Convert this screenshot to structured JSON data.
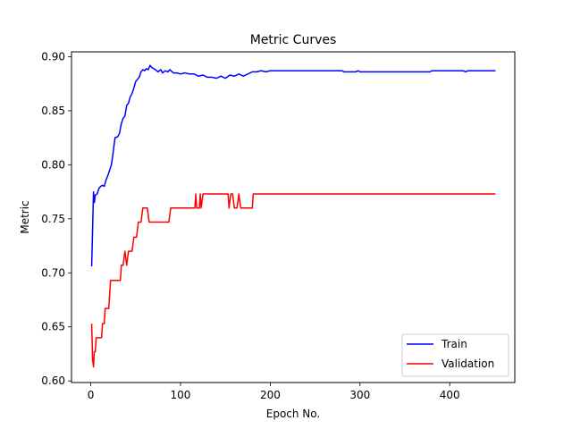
{
  "chart_data": {
    "type": "line",
    "title": "Metric Curves",
    "xlabel": "Epoch No.",
    "ylabel": "Metric",
    "xlim": [
      -21.5,
      472.5
    ],
    "ylim": [
      0.5985,
      0.9045
    ],
    "xticks": [
      0,
      100,
      200,
      300,
      400
    ],
    "yticks": [
      0.6,
      0.65,
      0.7,
      0.75,
      0.8,
      0.85,
      0.9
    ],
    "grid": false,
    "legend_position": "lower-right",
    "series": [
      {
        "name": "Train",
        "color": "#0000ff",
        "points": [
          [
            1,
            0.706
          ],
          [
            2,
            0.74
          ],
          [
            3,
            0.775
          ],
          [
            4,
            0.765
          ],
          [
            5,
            0.772
          ],
          [
            7,
            0.773
          ],
          [
            9,
            0.778
          ],
          [
            11,
            0.78
          ],
          [
            13,
            0.781
          ],
          [
            15,
            0.78
          ],
          [
            17,
            0.786
          ],
          [
            19,
            0.79
          ],
          [
            21,
            0.795
          ],
          [
            23,
            0.8
          ],
          [
            25,
            0.812
          ],
          [
            27,
            0.825
          ],
          [
            30,
            0.826
          ],
          [
            32,
            0.829
          ],
          [
            34,
            0.838
          ],
          [
            36,
            0.843
          ],
          [
            38,
            0.845
          ],
          [
            40,
            0.855
          ],
          [
            42,
            0.857
          ],
          [
            44,
            0.863
          ],
          [
            46,
            0.866
          ],
          [
            48,
            0.871
          ],
          [
            50,
            0.877
          ],
          [
            52,
            0.879
          ],
          [
            54,
            0.881
          ],
          [
            56,
            0.886
          ],
          [
            58,
            0.888
          ],
          [
            60,
            0.887
          ],
          [
            62,
            0.889
          ],
          [
            64,
            0.888
          ],
          [
            66,
            0.892
          ],
          [
            68,
            0.89
          ],
          [
            70,
            0.889
          ],
          [
            72,
            0.888
          ],
          [
            75,
            0.886
          ],
          [
            78,
            0.888
          ],
          [
            80,
            0.885
          ],
          [
            83,
            0.887
          ],
          [
            86,
            0.886
          ],
          [
            88,
            0.888
          ],
          [
            92,
            0.885
          ],
          [
            96,
            0.885
          ],
          [
            100,
            0.884
          ],
          [
            105,
            0.885
          ],
          [
            110,
            0.884
          ],
          [
            115,
            0.884
          ],
          [
            120,
            0.882
          ],
          [
            125,
            0.883
          ],
          [
            130,
            0.881
          ],
          [
            135,
            0.881
          ],
          [
            140,
            0.88
          ],
          [
            145,
            0.882
          ],
          [
            150,
            0.88
          ],
          [
            155,
            0.883
          ],
          [
            160,
            0.882
          ],
          [
            165,
            0.884
          ],
          [
            170,
            0.882
          ],
          [
            175,
            0.884
          ],
          [
            180,
            0.886
          ],
          [
            185,
            0.886
          ],
          [
            190,
            0.887
          ],
          [
            195,
            0.886
          ],
          [
            200,
            0.887
          ],
          [
            230,
            0.887
          ],
          [
            280,
            0.887
          ],
          [
            282,
            0.886
          ],
          [
            295,
            0.886
          ],
          [
            298,
            0.887
          ],
          [
            300,
            0.886
          ],
          [
            340,
            0.886
          ],
          [
            378,
            0.886
          ],
          [
            380,
            0.887
          ],
          [
            415,
            0.887
          ],
          [
            418,
            0.886
          ],
          [
            420,
            0.887
          ],
          [
            451,
            0.887
          ]
        ]
      },
      {
        "name": "Validation",
        "color": "#ff0000",
        "points": [
          [
            1,
            0.653
          ],
          [
            2,
            0.62
          ],
          [
            3,
            0.613
          ],
          [
            4,
            0.627
          ],
          [
            5,
            0.627
          ],
          [
            6,
            0.64
          ],
          [
            11,
            0.64
          ],
          [
            12,
            0.64
          ],
          [
            13,
            0.653
          ],
          [
            15,
            0.653
          ],
          [
            16,
            0.667
          ],
          [
            20,
            0.667
          ],
          [
            22,
            0.693
          ],
          [
            33,
            0.693
          ],
          [
            34,
            0.707
          ],
          [
            36,
            0.707
          ],
          [
            38,
            0.72
          ],
          [
            40,
            0.707
          ],
          [
            42,
            0.72
          ],
          [
            46,
            0.72
          ],
          [
            48,
            0.733
          ],
          [
            51,
            0.733
          ],
          [
            53,
            0.747
          ],
          [
            56,
            0.747
          ],
          [
            58,
            0.76
          ],
          [
            63,
            0.76
          ],
          [
            65,
            0.747
          ],
          [
            87,
            0.747
          ],
          [
            89,
            0.76
          ],
          [
            116,
            0.76
          ],
          [
            117,
            0.773
          ],
          [
            118,
            0.76
          ],
          [
            121,
            0.76
          ],
          [
            122,
            0.773
          ],
          [
            123,
            0.76
          ],
          [
            125,
            0.773
          ],
          [
            153,
            0.773
          ],
          [
            154,
            0.76
          ],
          [
            156,
            0.773
          ],
          [
            158,
            0.773
          ],
          [
            160,
            0.76
          ],
          [
            163,
            0.76
          ],
          [
            165,
            0.773
          ],
          [
            167,
            0.76
          ],
          [
            180,
            0.76
          ],
          [
            181,
            0.773
          ],
          [
            451,
            0.773
          ]
        ]
      }
    ]
  }
}
